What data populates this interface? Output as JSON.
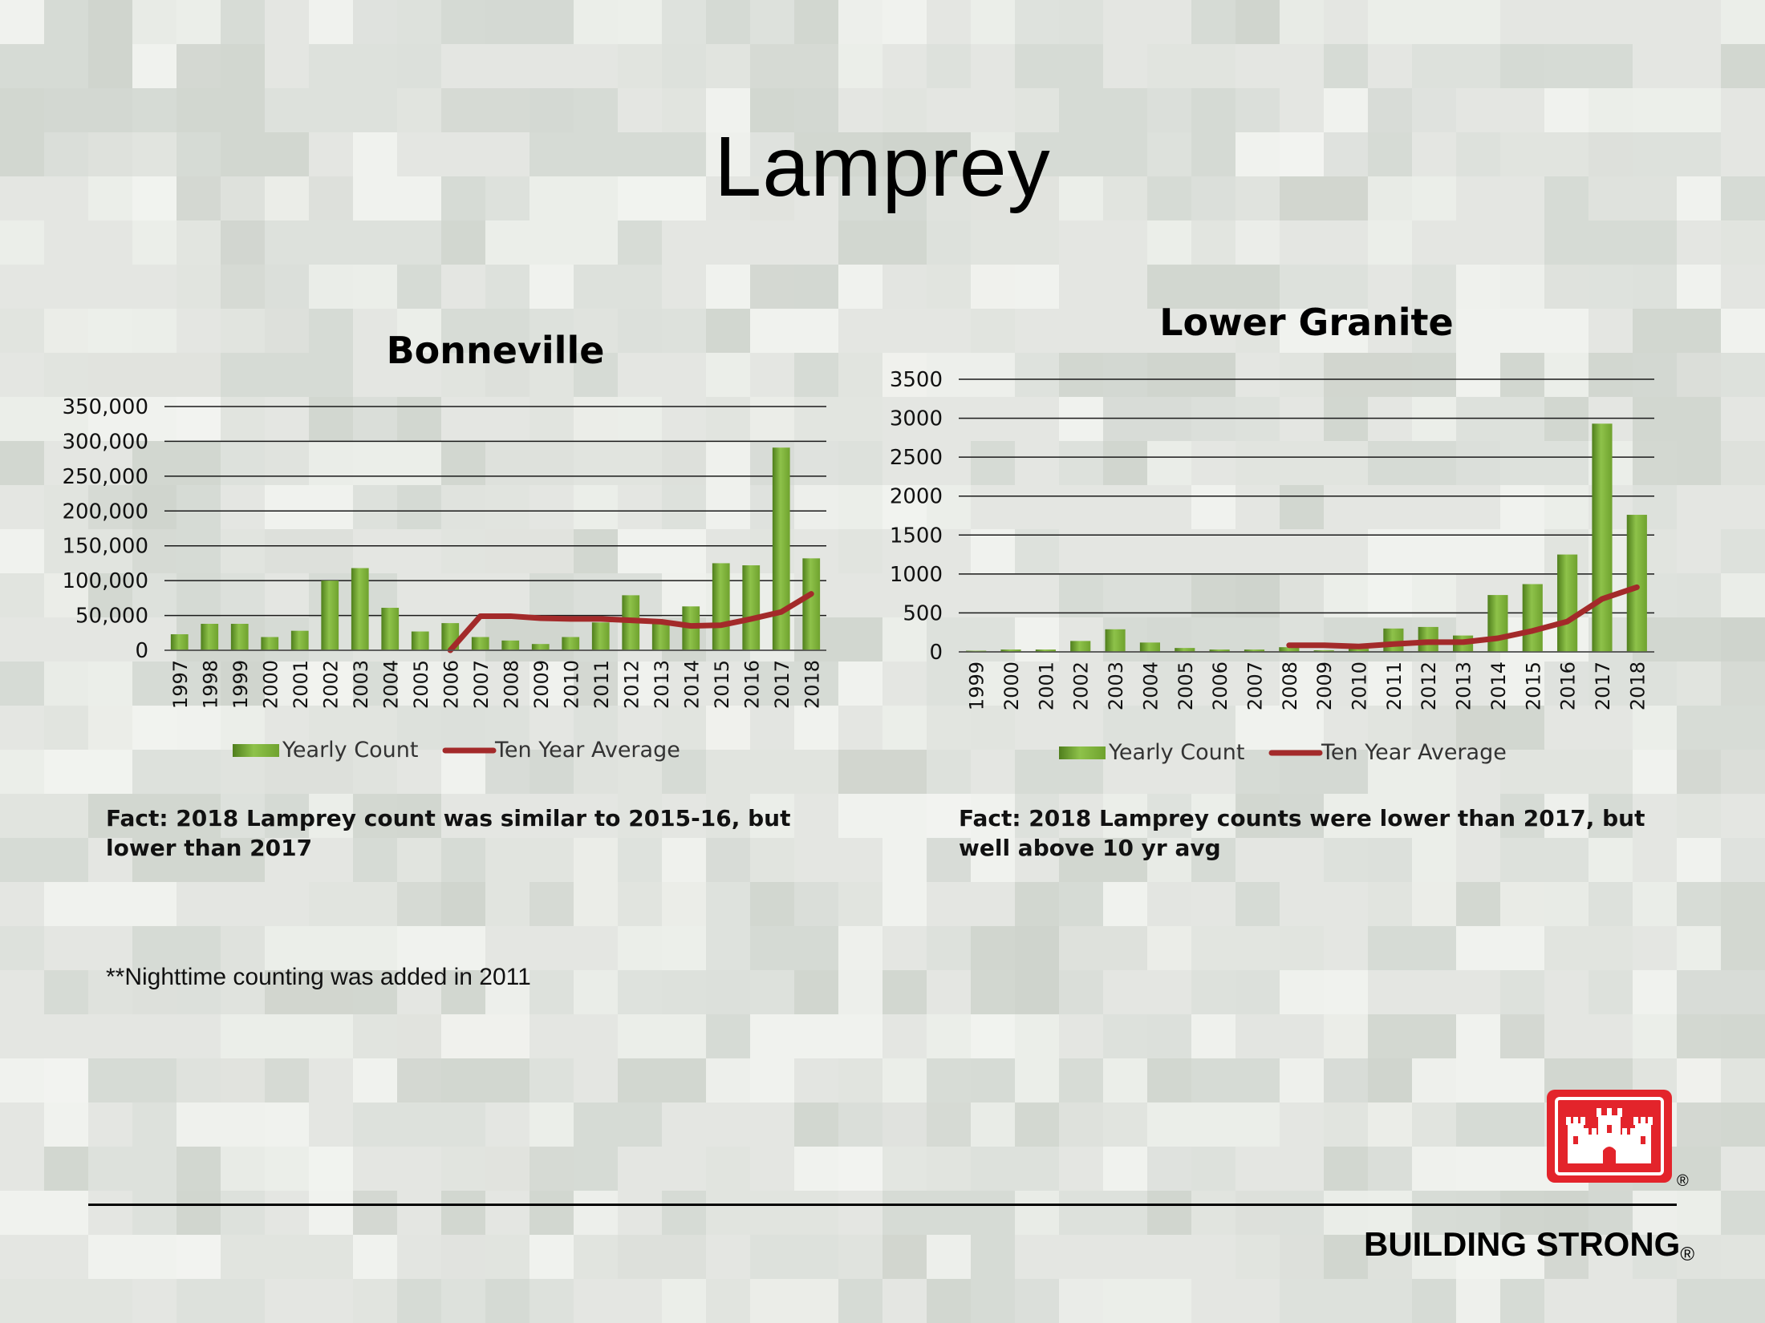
{
  "slide": {
    "title": "Lamprey",
    "facts": [
      "Fact:  2018 Lamprey count was similar to 2015-16, but lower than 2017",
      "Fact: 2018 Lamprey counts were lower than 2017, but well above 10 yr avg"
    ],
    "note": "**Nighttime counting was added in 2011",
    "footer": {
      "text": "BUILDING STRONG",
      "reg": "®"
    },
    "logo": {
      "name": "castle-logo-icon",
      "reg": "®"
    }
  },
  "colors": {
    "bar": "#6fa22e",
    "bar_light": "#8ec24a",
    "bar_dark": "#4f7e1c",
    "line": "#a32a2a",
    "grid": "#1a1a1a",
    "text": "#000000",
    "logo_red": "#e3242b"
  },
  "chart_data": [
    {
      "type": "bar",
      "title": "Bonneville",
      "categories": [
        "1997",
        "1998",
        "1999",
        "2000",
        "2001",
        "2002",
        "2003",
        "2004",
        "2005",
        "2006",
        "2007",
        "2008",
        "2009",
        "2010",
        "2011",
        "2012",
        "2013",
        "2014",
        "2015",
        "2016",
        "2017",
        "2018"
      ],
      "series": [
        {
          "name": "Yearly Count",
          "type": "bar",
          "values": [
            23000,
            38000,
            38000,
            19000,
            28000,
            100000,
            118000,
            61000,
            27000,
            39000,
            19000,
            14000,
            9000,
            19000,
            40000,
            79000,
            43000,
            63000,
            125000,
            122000,
            291000,
            132000
          ]
        },
        {
          "name": "Ten Year Average",
          "type": "line",
          "values": [
            null,
            null,
            null,
            null,
            null,
            null,
            null,
            null,
            null,
            0,
            49000,
            49000,
            46000,
            45000,
            45000,
            43000,
            41000,
            35000,
            36000,
            45000,
            55000,
            81000
          ]
        }
      ],
      "ylim": [
        0,
        350000
      ],
      "yticks": [
        0,
        50000,
        100000,
        150000,
        200000,
        250000,
        300000,
        350000
      ],
      "ytick_labels": [
        "0",
        "50,000",
        "100,000",
        "150,000",
        "200,000",
        "250,000",
        "300,000",
        "350,000"
      ],
      "grid": true,
      "legend": "bottom"
    },
    {
      "type": "bar",
      "title": "Lower Granite",
      "categories": [
        "1999",
        "2000",
        "2001",
        "2002",
        "2003",
        "2004",
        "2005",
        "2006",
        "2007",
        "2008",
        "2009",
        "2010",
        "2011",
        "2012",
        "2013",
        "2014",
        "2015",
        "2016",
        "2017",
        "2018"
      ],
      "series": [
        {
          "name": "Yearly Count",
          "type": "bar",
          "values": [
            15,
            30,
            30,
            140,
            290,
            120,
            50,
            30,
            30,
            60,
            20,
            40,
            300,
            320,
            210,
            730,
            870,
            1250,
            2930,
            1760
          ]
        },
        {
          "name": "Ten Year Average",
          "type": "line",
          "values": [
            null,
            null,
            null,
            null,
            null,
            null,
            null,
            null,
            null,
            85,
            85,
            70,
            100,
            125,
            125,
            175,
            270,
            390,
            680,
            830
          ]
        }
      ],
      "ylim": [
        0,
        3500
      ],
      "yticks": [
        0,
        500,
        1000,
        1500,
        2000,
        2500,
        3000,
        3500
      ],
      "ytick_labels": [
        "0",
        "500",
        "1000",
        "1500",
        "2000",
        "2500",
        "3000",
        "3500"
      ],
      "grid": true,
      "legend": "bottom"
    }
  ]
}
